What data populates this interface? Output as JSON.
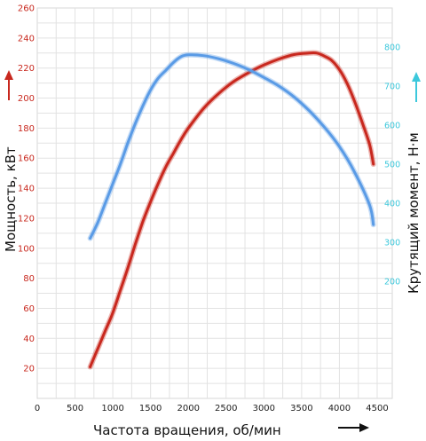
{
  "chart_data": {
    "type": "line",
    "xlabel": "Частота вращения, об/мин",
    "ylabel_left": "Мощность, кВт",
    "ylabel_right": "Крутящий момент, Н·м",
    "xlim": [
      0,
      4700
    ],
    "ylim_left": [
      0,
      260
    ],
    "ylim_right": [
      -100,
      900
    ],
    "x_ticks": [
      0,
      500,
      1000,
      1500,
      2000,
      2500,
      3000,
      3500,
      4000,
      4500
    ],
    "y_left_ticks": [
      20,
      40,
      60,
      80,
      100,
      120,
      140,
      160,
      180,
      200,
      220,
      240,
      260
    ],
    "y_right_ticks": [
      200,
      300,
      400,
      500,
      600,
      700,
      800
    ],
    "grid": true,
    "series": [
      {
        "name": "Мощность",
        "axis": "left",
        "color": "#c8281e",
        "x": [
          700,
          800,
          900,
          1000,
          1100,
          1200,
          1300,
          1400,
          1500,
          1600,
          1700,
          1800,
          1900,
          2000,
          2200,
          2400,
          2600,
          2800,
          3000,
          3200,
          3400,
          3600,
          3700,
          3800,
          3900,
          4000,
          4100,
          4200,
          4300,
          4400,
          4450
        ],
        "values": [
          21,
          33,
          45,
          57,
          72,
          87,
          103,
          118,
          131,
          143,
          154,
          163,
          172,
          180,
          193,
          203,
          211,
          217,
          222,
          226,
          229,
          230,
          230,
          228,
          225,
          219,
          210,
          198,
          184,
          169,
          156
        ]
      },
      {
        "name": "Крутящий момент",
        "axis": "right",
        "color": "#5a9be6",
        "x": [
          700,
          800,
          900,
          1000,
          1100,
          1200,
          1300,
          1400,
          1500,
          1600,
          1700,
          1800,
          1900,
          2000,
          2200,
          2400,
          2600,
          2800,
          3000,
          3200,
          3400,
          3600,
          3800,
          4000,
          4200,
          4400,
          4450
        ],
        "values": [
          310,
          350,
          400,
          450,
          500,
          555,
          605,
          650,
          690,
          720,
          740,
          760,
          775,
          780,
          778,
          770,
          758,
          742,
          722,
          700,
          672,
          637,
          595,
          545,
          480,
          395,
          345
        ]
      }
    ]
  }
}
